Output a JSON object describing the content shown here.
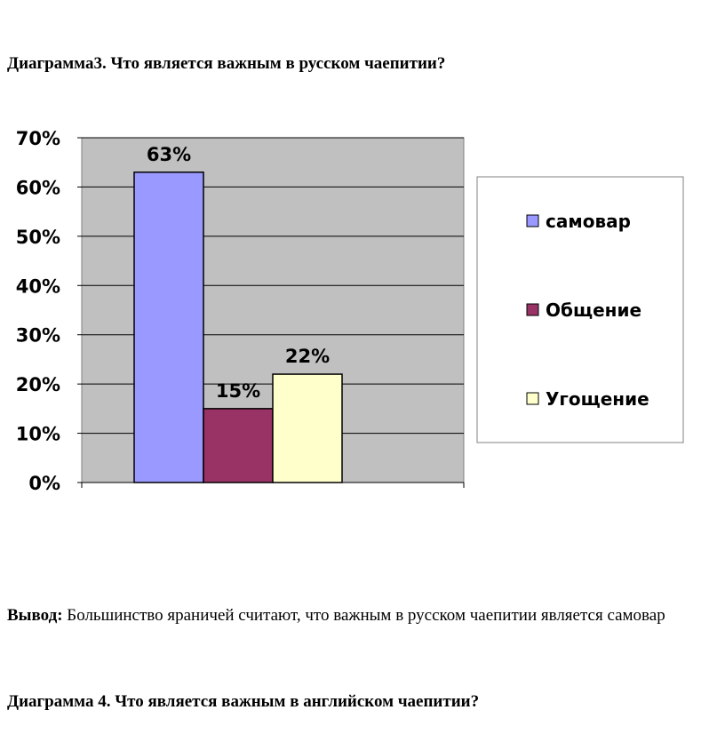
{
  "heading": "Диаграмма3. Что является важным в русском чаепитии?",
  "conclusion": {
    "label": "Вывод:",
    "text": " Большинство яраничей считают, что важным в русском чаепитии является самовар"
  },
  "next_heading": "Диаграмма 4. Что является важным в английском чаепитии?",
  "chart_data": {
    "type": "bar",
    "title": "",
    "xlabel": "",
    "ylabel": "",
    "ylim": [
      0,
      70
    ],
    "yticks": [
      "0%",
      "10%",
      "20%",
      "30%",
      "40%",
      "50%",
      "60%",
      "70%"
    ],
    "grid": true,
    "legend_position": "right",
    "series": [
      {
        "name": "самовар",
        "value": 63,
        "label": "63%",
        "color": "#9999ff"
      },
      {
        "name": "Общение",
        "value": 15,
        "label": "15%",
        "color": "#993366"
      },
      {
        "name": "Угощение",
        "value": 22,
        "label": "22%",
        "color": "#ffffcc"
      }
    ],
    "plot_background": "#c0c0c0"
  }
}
